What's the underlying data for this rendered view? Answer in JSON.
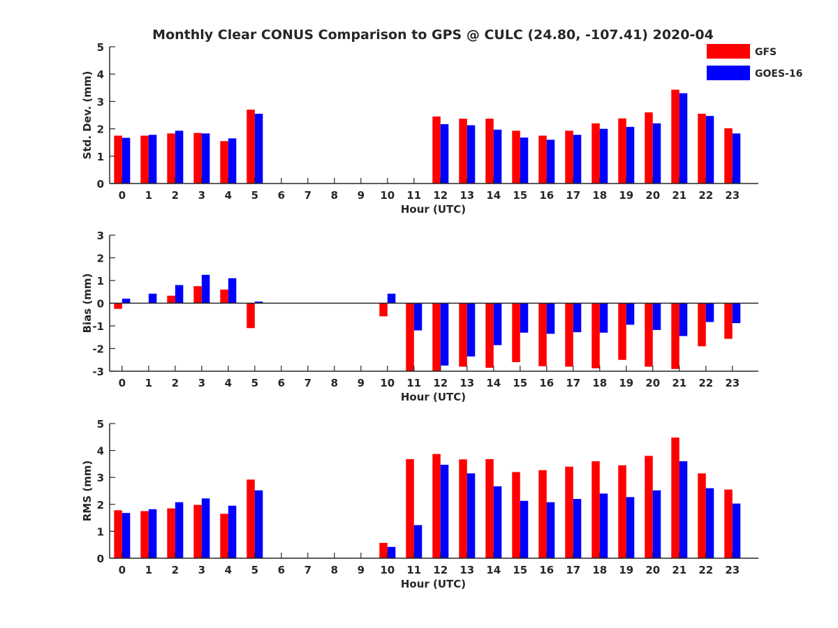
{
  "title": "Monthly Clear CONUS Comparison to GPS @ CULC (24.80, -107.41) 2020-04",
  "legend": {
    "placement": "top-right",
    "entries": [
      {
        "name": "GFS",
        "color": "#ff0000"
      },
      {
        "name": "GOES-16",
        "color": "#0000ff"
      }
    ]
  },
  "colors": {
    "gfs": "#ff0000",
    "goes16": "#0000ff",
    "axis": "#262626"
  },
  "chart_data": [
    {
      "type": "bar",
      "xlabel": "Hour (UTC)",
      "ylabel": "Std. Dev. (mm)",
      "ylim": [
        0,
        5
      ],
      "yticks": [
        "0",
        "1",
        "2",
        "3",
        "4",
        "5"
      ],
      "categories": [
        "0",
        "1",
        "2",
        "3",
        "4",
        "5",
        "6",
        "7",
        "8",
        "9",
        "10",
        "11",
        "12",
        "13",
        "14",
        "15",
        "16",
        "17",
        "18",
        "19",
        "20",
        "21",
        "22",
        "23"
      ],
      "series": [
        {
          "name": "GFS",
          "values": [
            1.75,
            1.75,
            1.83,
            1.85,
            1.55,
            2.7,
            0,
            0,
            0,
            0,
            0,
            0,
            2.45,
            2.37,
            2.37,
            1.93,
            1.75,
            1.93,
            2.2,
            2.38,
            2.6,
            3.43,
            2.55,
            2.02
          ]
        },
        {
          "name": "GOES-16",
          "values": [
            1.67,
            1.78,
            1.93,
            1.83,
            1.65,
            2.55,
            0,
            0,
            0,
            0,
            0,
            0,
            2.17,
            2.13,
            1.97,
            1.68,
            1.6,
            1.78,
            2.0,
            2.07,
            2.2,
            3.3,
            2.47,
            1.83
          ]
        }
      ]
    },
    {
      "type": "bar",
      "xlabel": "Hour (UTC)",
      "ylabel": "Bias (mm)",
      "ylim": [
        -3,
        3
      ],
      "yticks": [
        "-3",
        "-2",
        "-1",
        "0",
        "1",
        "2",
        "3"
      ],
      "categories": [
        "0",
        "1",
        "2",
        "3",
        "4",
        "5",
        "6",
        "7",
        "8",
        "9",
        "10",
        "11",
        "12",
        "13",
        "14",
        "15",
        "16",
        "17",
        "18",
        "19",
        "20",
        "21",
        "22",
        "23"
      ],
      "series": [
        {
          "name": "GFS",
          "values": [
            -0.25,
            0,
            0.33,
            0.75,
            0.6,
            -1.1,
            0,
            0,
            0,
            0,
            -0.58,
            -3.0,
            -3.0,
            -2.8,
            -2.85,
            -2.6,
            -2.78,
            -2.8,
            -2.87,
            -2.5,
            -2.8,
            -2.9,
            -1.9,
            -1.57
          ]
        },
        {
          "name": "GOES-16",
          "values": [
            0.2,
            0.42,
            0.8,
            1.25,
            1.1,
            0.07,
            0,
            0,
            0,
            0,
            0.42,
            -1.2,
            -2.75,
            -2.35,
            -1.85,
            -1.3,
            -1.35,
            -1.28,
            -1.3,
            -0.95,
            -1.18,
            -1.45,
            -0.83,
            -0.88
          ]
        }
      ]
    },
    {
      "type": "bar",
      "xlabel": "Hour (UTC)",
      "ylabel": "RMS (mm)",
      "ylim": [
        0,
        5
      ],
      "yticks": [
        "0",
        "1",
        "2",
        "3",
        "4",
        "5"
      ],
      "categories": [
        "0",
        "1",
        "2",
        "3",
        "4",
        "5",
        "6",
        "7",
        "8",
        "9",
        "10",
        "11",
        "12",
        "13",
        "14",
        "15",
        "16",
        "17",
        "18",
        "19",
        "20",
        "21",
        "22",
        "23"
      ],
      "series": [
        {
          "name": "GFS",
          "values": [
            1.78,
            1.75,
            1.85,
            1.98,
            1.65,
            2.92,
            0,
            0,
            0,
            0,
            0.57,
            3.68,
            3.87,
            3.67,
            3.68,
            3.2,
            3.27,
            3.4,
            3.6,
            3.45,
            3.8,
            4.48,
            3.15,
            2.55
          ]
        },
        {
          "name": "GOES-16",
          "values": [
            1.68,
            1.82,
            2.08,
            2.22,
            1.95,
            2.52,
            0,
            0,
            0,
            0,
            0.42,
            1.23,
            3.47,
            3.15,
            2.67,
            2.13,
            2.08,
            2.2,
            2.4,
            2.27,
            2.52,
            3.6,
            2.6,
            2.03
          ]
        }
      ]
    }
  ]
}
